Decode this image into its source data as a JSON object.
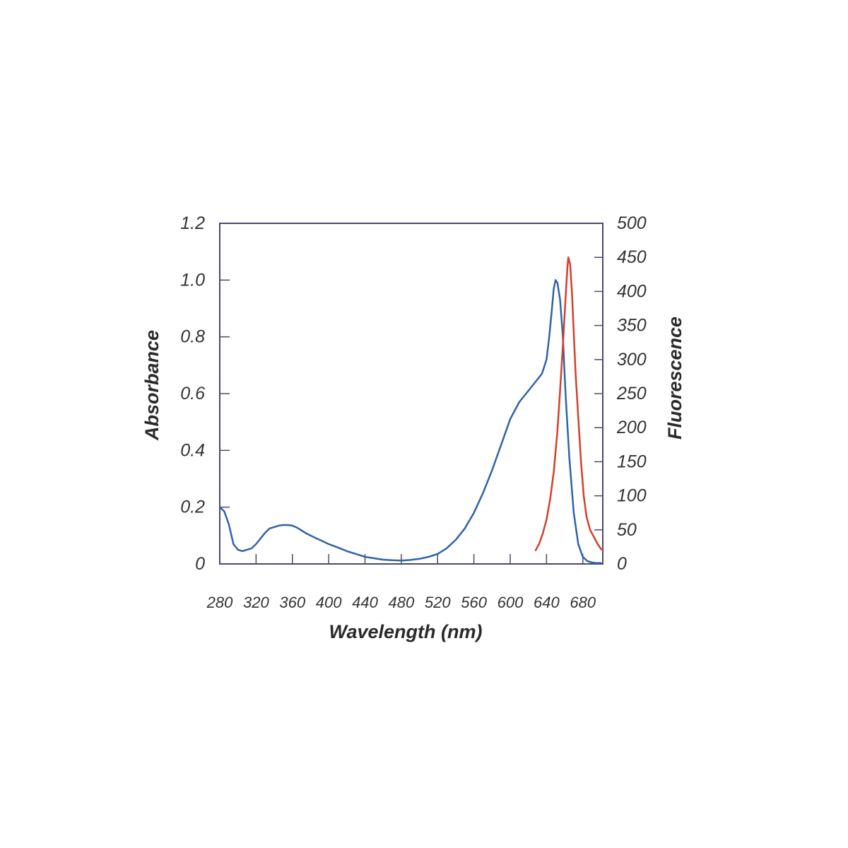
{
  "chart_data": {
    "type": "line",
    "xlabel": "Wavelength (nm)",
    "ylabel": "Absorbance",
    "y2label": "Fluorescence",
    "x_ticks": [
      "280",
      "320",
      "360",
      "400",
      "440",
      "480",
      "520",
      "560",
      "600",
      "640",
      "680"
    ],
    "y_ticks": [
      "0",
      "0.2",
      "0.4",
      "0.6",
      "0.8",
      "1.0",
      "1.2"
    ],
    "y2_ticks": [
      "0",
      "50",
      "100",
      "150",
      "200",
      "250",
      "300",
      "350",
      "400",
      "450",
      "500"
    ],
    "xlim": [
      280,
      702
    ],
    "ylim": [
      0,
      1.2
    ],
    "y2lim": [
      0,
      500
    ],
    "grid": false,
    "colors": {
      "absorbance": "#2f63a8",
      "fluorescence": "#d2402a",
      "axis": "#4a4a6a"
    },
    "series": [
      {
        "axis": "left",
        "x": [
          280,
          285,
          290,
          295,
          300,
          305,
          310,
          315,
          320,
          325,
          330,
          335,
          340,
          345,
          350,
          355,
          360,
          365,
          370,
          375,
          380,
          385,
          390,
          400,
          410,
          420,
          430,
          440,
          450,
          460,
          470,
          480,
          490,
          500,
          510,
          520,
          530,
          540,
          550,
          560,
          570,
          580,
          590,
          600,
          610,
          620,
          630,
          635,
          640,
          643,
          646,
          648,
          650,
          652,
          655,
          658,
          661,
          665,
          670,
          675,
          680,
          685,
          690,
          695,
          700
        ],
        "y": [
          0.2,
          0.185,
          0.14,
          0.07,
          0.05,
          0.045,
          0.05,
          0.055,
          0.07,
          0.09,
          0.11,
          0.125,
          0.13,
          0.135,
          0.137,
          0.137,
          0.135,
          0.128,
          0.118,
          0.108,
          0.1,
          0.092,
          0.085,
          0.07,
          0.058,
          0.045,
          0.035,
          0.025,
          0.02,
          0.015,
          0.013,
          0.012,
          0.014,
          0.018,
          0.025,
          0.035,
          0.055,
          0.085,
          0.125,
          0.18,
          0.25,
          0.33,
          0.42,
          0.51,
          0.57,
          0.61,
          0.65,
          0.67,
          0.72,
          0.8,
          0.9,
          0.97,
          1.0,
          0.99,
          0.93,
          0.8,
          0.6,
          0.38,
          0.18,
          0.07,
          0.025,
          0.01,
          0.005,
          0.003,
          0.003
        ]
      },
      {
        "axis": "right",
        "x": [
          628,
          632,
          636,
          640,
          644,
          648,
          652,
          655,
          658,
          661,
          663,
          664,
          666,
          668,
          670,
          672,
          675,
          678,
          681,
          684,
          688,
          692,
          696,
          700,
          702
        ],
        "y": [
          20,
          30,
          45,
          65,
          95,
          135,
          195,
          255,
          320,
          390,
          435,
          450,
          440,
          400,
          340,
          280,
          215,
          150,
          100,
          70,
          50,
          40,
          30,
          22,
          20
        ]
      }
    ]
  }
}
